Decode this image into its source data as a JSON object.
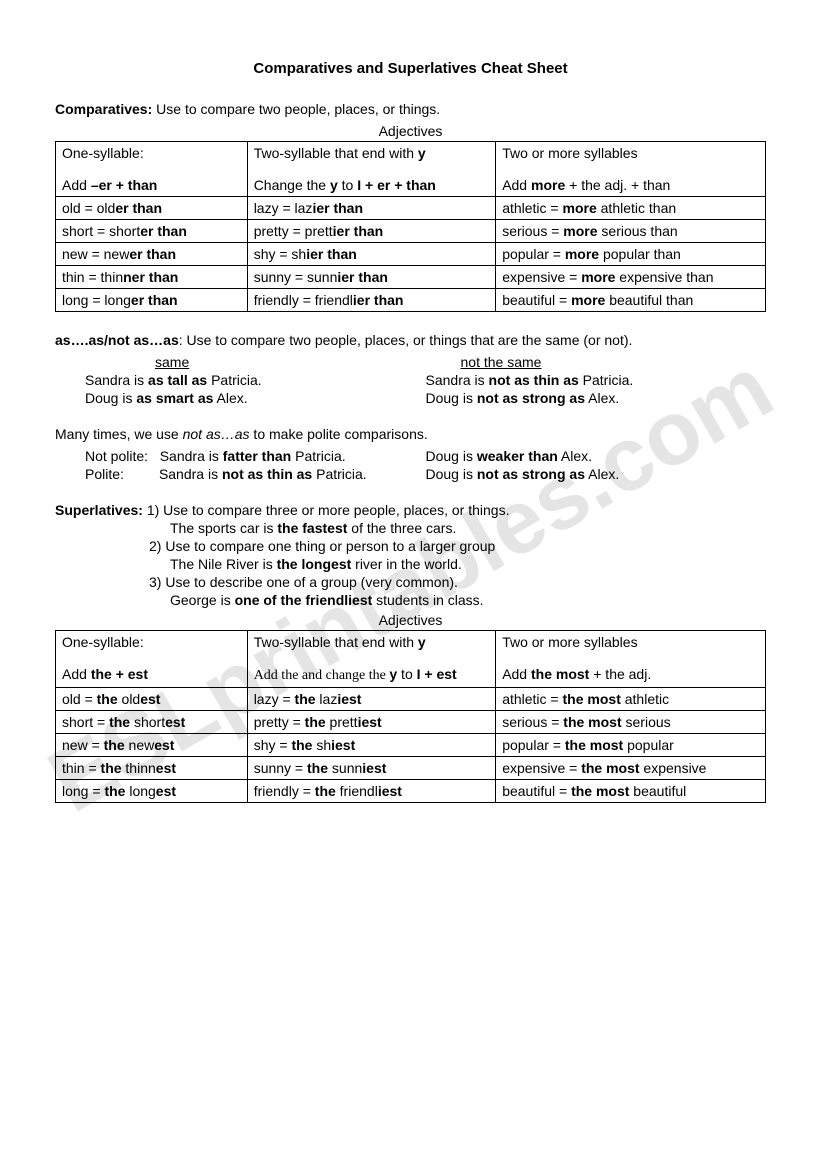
{
  "title": "Comparatives and Superlatives Cheat Sheet",
  "comparatives": {
    "label": "Comparatives:",
    "desc": " Use to compare two people, places, or things.",
    "table_heading": "Adjectives",
    "header": {
      "c1_line1": "One-syllable:",
      "c1_line2_pre": "Add ",
      "c1_line2_bold": "–er + than",
      "c2_line1_pre": "Two-syllable that end with ",
      "c2_line1_bold": "y",
      "c2_line2_pre": "Change the ",
      "c2_line2_b1": "y",
      "c2_line2_mid": " to ",
      "c2_line2_b2": "I + er + than",
      "c3_line1": "Two or more syllables",
      "c3_line2_pre": "Add ",
      "c3_line2_bold": "more",
      "c3_line2_post": " + the adj. + than"
    },
    "rows": [
      {
        "c1_pre": "old = old",
        "c1_b": "er than",
        "c2_pre": "lazy = laz",
        "c2_b": "ier than",
        "c3_pre": "athletic = ",
        "c3_b": "more",
        "c3_post": " athletic than"
      },
      {
        "c1_pre": "short = short",
        "c1_b": "er than",
        "c2_pre": "pretty = prett",
        "c2_b": "ier than",
        "c3_pre": "serious = ",
        "c3_b": "more",
        "c3_post": " serious than"
      },
      {
        "c1_pre": "new = new",
        "c1_b": "er than",
        "c2_pre": "shy = sh",
        "c2_b": "ier than",
        "c3_pre": "popular = ",
        "c3_b": "more",
        "c3_post": " popular than"
      },
      {
        "c1_pre": "thin = thin",
        "c1_b": "ner than",
        "c2_pre": "sunny = sunn",
        "c2_b": "ier than",
        "c3_pre": "expensive = ",
        "c3_b": "more",
        "c3_post": " expensive than"
      },
      {
        "c1_pre": "long = long",
        "c1_b": "er than",
        "c2_pre": "friendly = friendl",
        "c2_b": "ier than",
        "c3_pre": "beautiful = ",
        "c3_b": "more",
        "c3_post": " beautiful than"
      }
    ]
  },
  "asas": {
    "label_b1": "as….as/not as…as",
    "label_post": ": Use to compare two people, places, or things that are the same (or not).",
    "same_h": "same",
    "notsame_h": "not the same",
    "l1_left_pre": "Sandra is ",
    "l1_left_b": "as tall as",
    "l1_left_post": " Patricia.",
    "l1_right_pre": "Sandra is ",
    "l1_right_b": "not as thin as",
    "l1_right_post": " Patricia.",
    "l2_left_pre": "Doug is ",
    "l2_left_b": "as smart as",
    "l2_left_post": " Alex.",
    "l2_right_pre": "Doug is ",
    "l2_right_b": "not as strong as",
    "l2_right_post": " Alex."
  },
  "polite": {
    "intro_pre": "Many times, we use ",
    "intro_i": "not as…as",
    "intro_post": " to make polite comparisons.",
    "np_label": "Not polite:",
    "np1_pre": "Sandra is ",
    "np1_b": "fatter than",
    "np1_post": " Patricia.",
    "np2_pre": "Doug is ",
    "np2_b": "weaker than",
    "np2_post": " Alex.",
    "p_label": "Polite:",
    "p1_pre": "Sandra is ",
    "p1_b": "not as thin as",
    "p1_post": " Patricia.",
    "p2_pre": "Doug is ",
    "p2_b": "not as strong as",
    "p2_post": " Alex."
  },
  "superlatives": {
    "label": "Superlatives:",
    "l1": " 1) Use to compare three or more people, places, or things.",
    "e1_pre": "The sports car is ",
    "e1_b": "the fastest",
    "e1_post": " of the three cars.",
    "l2": "2) Use to compare one thing or person to a larger group",
    "e2_pre": "The Nile River is ",
    "e2_b": "the longest",
    "e2_post": " river in the world.",
    "l3": "3) Use to describe one of a group (very common).",
    "e3_pre": "George is ",
    "e3_b": "one of the friendliest",
    "e3_post": " students in class.",
    "table_heading": "Adjectives",
    "header": {
      "c1_line1": "One-syllable:",
      "c1_line2_pre": "Add ",
      "c1_line2_bold": "the + est",
      "c2_line1_pre": "Two-syllable that end with ",
      "c2_line1_bold": "y",
      "c2_line2_pre": "Add the and change the ",
      "c2_line2_b1": "y",
      "c2_line2_mid": " to ",
      "c2_line2_b2": "I + est",
      "c3_line1": "Two or more syllables",
      "c3_line2_pre": "Add ",
      "c3_line2_bold": "the most",
      "c3_line2_post": " + the adj."
    },
    "rows": [
      {
        "c1_pre": "old = ",
        "c1_b": "the",
        "c1_post": " old",
        "c1_b2": "est",
        "c2_pre": "lazy = ",
        "c2_b": "the",
        "c2_post": " laz",
        "c2_b2": "iest",
        "c3_pre": "athletic = ",
        "c3_b": "the most",
        "c3_post": " athletic"
      },
      {
        "c1_pre": "short = ",
        "c1_b": "the",
        "c1_post": " short",
        "c1_b2": "est",
        "c2_pre": "pretty = ",
        "c2_b": "the",
        "c2_post": " prett",
        "c2_b2": "iest",
        "c3_pre": "serious = ",
        "c3_b": "the most",
        "c3_post": " serious"
      },
      {
        "c1_pre": "new =  ",
        "c1_b": "the",
        "c1_post": " new",
        "c1_b2": "est",
        "c2_pre": "shy = ",
        "c2_b": "the",
        "c2_post": " sh",
        "c2_b2": "iest",
        "c3_pre": "popular = ",
        "c3_b": "the most",
        "c3_post": " popular"
      },
      {
        "c1_pre": "thin = ",
        "c1_b": "the",
        "c1_post": " thinn",
        "c1_b2": "est",
        "c2_pre": "sunny = ",
        "c2_b": "the",
        "c2_post": " sunn",
        "c2_b2": "iest",
        "c3_pre": "expensive = ",
        "c3_b": "the most",
        "c3_post": " expensive"
      },
      {
        "c1_pre": "long = ",
        "c1_b": "the",
        "c1_post": " long",
        "c1_b2": "est",
        "c2_pre": "friendly = ",
        "c2_b": "the",
        "c2_post": " friendl",
        "c2_b2": "iest",
        "c3_pre": "beautiful = ",
        "c3_b": "the most",
        "c3_post": " beautiful"
      }
    ]
  }
}
